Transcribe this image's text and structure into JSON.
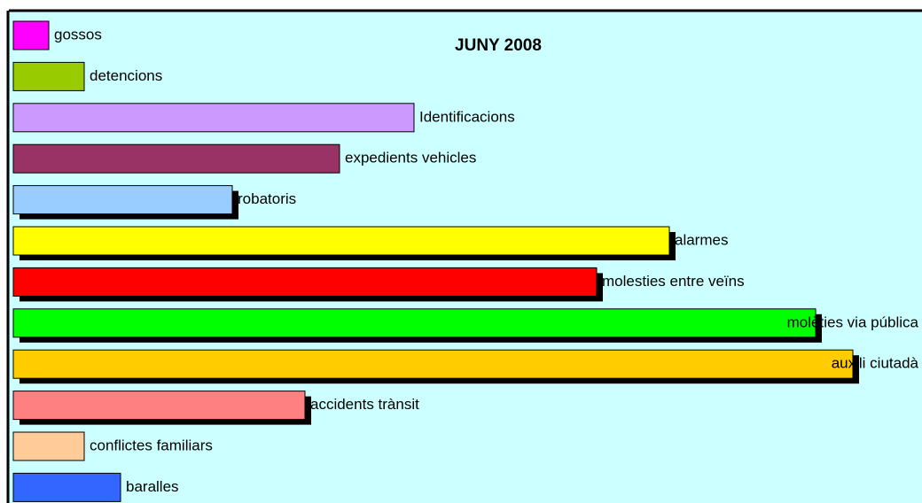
{
  "chart_data": {
    "type": "barh",
    "title": "JUNY 2008",
    "categories": [
      "gossos",
      "detencions",
      "Identificacions",
      "expedients vehicles",
      "robatoris",
      "alarmes",
      "molesties entre veïns",
      "molèties via pública",
      "auxili ciutadà",
      "accidents trànsit",
      "conflictes familiars",
      "baralles"
    ],
    "values": [
      40,
      80,
      452,
      368,
      247,
      740,
      658,
      905,
      947,
      329,
      80,
      121
    ],
    "colors": [
      "#ff00ff",
      "#99cc00",
      "#cc99ff",
      "#993366",
      "#99ccff",
      "#ffff00",
      "#ff0000",
      "#00ff00",
      "#ffcc00",
      "#ff8080",
      "#ffcc99",
      "#3366ff"
    ],
    "xlim": [
      0,
      1000
    ]
  }
}
